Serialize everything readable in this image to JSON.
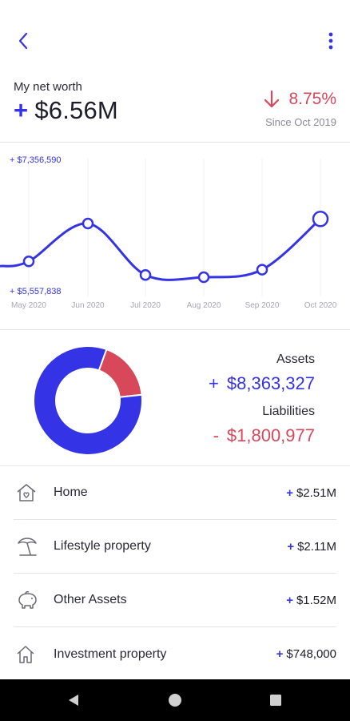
{
  "summary": {
    "label": "My net worth",
    "plus": "+",
    "value": "$6.56M",
    "change_pct": "8.75%",
    "since": "Since Oct 2019"
  },
  "chart_data": {
    "type": "line",
    "x": [
      "May 2020",
      "Jun 2020",
      "Jul 2020",
      "Aug 2020",
      "Sep 2020",
      "Oct 2020"
    ],
    "series": [
      {
        "values": [
          6000000,
          6500000,
          5820000,
          5790000,
          5890000,
          6560000
        ]
      }
    ],
    "ylim_labels": {
      "max": "+ $7,356,590",
      "min": "+ $5,557,838"
    },
    "ylim": [
      5557838,
      7356590
    ],
    "grid": true
  },
  "breakdown": {
    "assets_label": "Assets",
    "assets_sign": "+",
    "assets_value": "$8,363,327",
    "liabilities_label": "Liabilities",
    "liabilities_sign": "-",
    "liabilities_value": "$1,800,977",
    "assets_amount": 8363327,
    "liabilities_amount": 1800977,
    "assets_color": "#3434e6",
    "liabilities_color": "#d7485a"
  },
  "items": [
    {
      "label": "Home",
      "plus": "+",
      "value": "$2.51M",
      "icon": "house-heart-icon"
    },
    {
      "label": "Lifestyle property",
      "plus": "+",
      "value": "$2.11M",
      "icon": "beach-umbrella-icon"
    },
    {
      "label": "Other Assets",
      "plus": "+",
      "value": "$1.52M",
      "icon": "piggy-bank-icon"
    },
    {
      "label": "Investment property",
      "plus": "+",
      "value": "$748,000",
      "icon": "house-icon"
    }
  ],
  "colors": {
    "accent": "#3434e6",
    "negative": "#d7485a"
  }
}
